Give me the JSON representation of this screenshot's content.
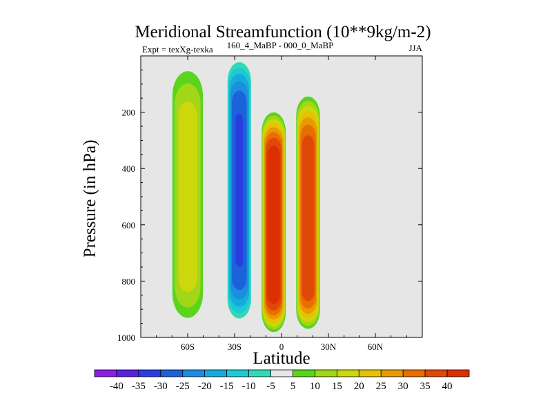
{
  "chart_data": {
    "type": "heatmap",
    "title": "Meridional Streamfunction (10**9kg/m-2)",
    "subtitle_left": "Expt = texXg-texka",
    "subtitle_center": "160_4_MaBP - 000_0_MaBP",
    "subtitle_right": "JJA",
    "xlabel": "Latitude",
    "ylabel": "Pressure (in hPa)",
    "xlim": [
      -90,
      90
    ],
    "ylim": [
      1000,
      0
    ],
    "x_ticks": [
      {
        "value": -60,
        "label": "60S"
      },
      {
        "value": -30,
        "label": "30S"
      },
      {
        "value": 0,
        "label": "0"
      },
      {
        "value": 30,
        "label": "30N"
      },
      {
        "value": 60,
        "label": "60N"
      }
    ],
    "y_ticks": [
      {
        "value": 200,
        "label": "200"
      },
      {
        "value": 400,
        "label": "400"
      },
      {
        "value": 600,
        "label": "600"
      },
      {
        "value": 800,
        "label": "800"
      },
      {
        "value": 1000,
        "label": "1000"
      }
    ],
    "levels": [
      -40,
      -35,
      -30,
      -25,
      -20,
      -15,
      -10,
      -5,
      5,
      10,
      15,
      20,
      25,
      30,
      35,
      40
    ],
    "colors": [
      "#8c1ee6",
      "#5a22dc",
      "#2a3ee0",
      "#1c62d8",
      "#1c8ee0",
      "#14acdc",
      "#1ccad6",
      "#34d8b6",
      "#e6e6e6",
      "#5ad41c",
      "#a2d618",
      "#ccd80c",
      "#e6c200",
      "#e89a00",
      "#e86e00",
      "#e04808",
      "#dc3000"
    ],
    "background_color": "#e6e6e6",
    "cells": [
      {
        "name": "sh-positive-cell",
        "center_lat": -60,
        "center_p": 500,
        "width_lat": 11,
        "top_p": 20,
        "bottom_p": 960,
        "peak": 17
      },
      {
        "name": "sh-negative-cell",
        "center_lat": -27,
        "center_p": 450,
        "width_lat": 8,
        "top_p": 5,
        "bottom_p": 950,
        "peak": -30
      },
      {
        "name": "hadley-cell-positive",
        "center_lat": -5,
        "center_p": 600,
        "width_lat": 8,
        "top_p": 190,
        "bottom_p": 990,
        "peak": 44
      },
      {
        "name": "nh-positive-cell",
        "center_lat": 17,
        "center_p": 600,
        "width_lat": 8,
        "top_p": 130,
        "bottom_p": 980,
        "peak": 38
      }
    ]
  }
}
